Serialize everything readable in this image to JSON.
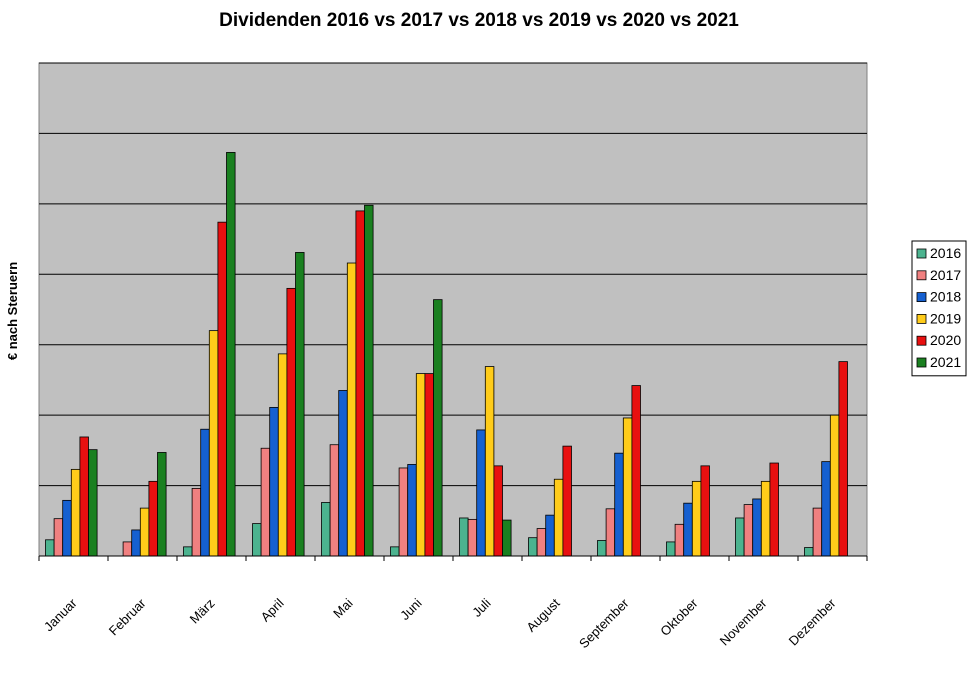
{
  "chart_data": {
    "type": "bar",
    "title": "Dividenden 2016 vs 2017 vs 2018 vs 2019 vs 2020 vs 2021",
    "ylabel": "€ nach Steruern",
    "xlabel": "",
    "categories": [
      "Januar",
      "Februar",
      "März",
      "April",
      "Mai",
      "Juni",
      "Juli",
      "August",
      "September",
      "Oktober",
      "November",
      "Dezember"
    ],
    "ylim": [
      0,
      7
    ],
    "y_gridlines": [
      1,
      2,
      3,
      4,
      5,
      6,
      7
    ],
    "y_ticks_labeled": false,
    "grid": true,
    "legend_position": "right",
    "plot_background": "#C0C0C0",
    "series": [
      {
        "name": "2016",
        "color": "#4CB38F",
        "values": [
          0.23,
          0,
          0.13,
          0.46,
          0.76,
          0.13,
          0.54,
          0.26,
          0.22,
          0.2,
          0.54,
          0.12
        ]
      },
      {
        "name": "2017",
        "color": "#F08080",
        "values": [
          0.53,
          0.2,
          0.96,
          1.53,
          1.58,
          1.25,
          0.52,
          0.39,
          0.67,
          0.45,
          0.73,
          0.68
        ]
      },
      {
        "name": "2018",
        "color": "#1560D0",
        "values": [
          0.79,
          0.37,
          1.8,
          2.11,
          2.35,
          1.3,
          1.79,
          0.58,
          1.46,
          0.75,
          0.81,
          1.34
        ]
      },
      {
        "name": "2019",
        "color": "#FFCC1A",
        "values": [
          1.23,
          0.68,
          3.2,
          2.87,
          4.16,
          2.59,
          2.69,
          1.09,
          1.96,
          1.06,
          1.06,
          2.0
        ]
      },
      {
        "name": "2020",
        "color": "#E81010",
        "values": [
          1.69,
          1.06,
          4.74,
          3.8,
          4.9,
          2.59,
          1.28,
          1.56,
          2.42,
          1.28,
          1.32,
          2.76
        ]
      },
      {
        "name": "2021",
        "color": "#1A8020",
        "values": [
          1.51,
          1.47,
          5.73,
          4.31,
          4.98,
          3.64,
          0.51,
          0,
          0,
          0,
          0,
          0
        ]
      }
    ]
  }
}
